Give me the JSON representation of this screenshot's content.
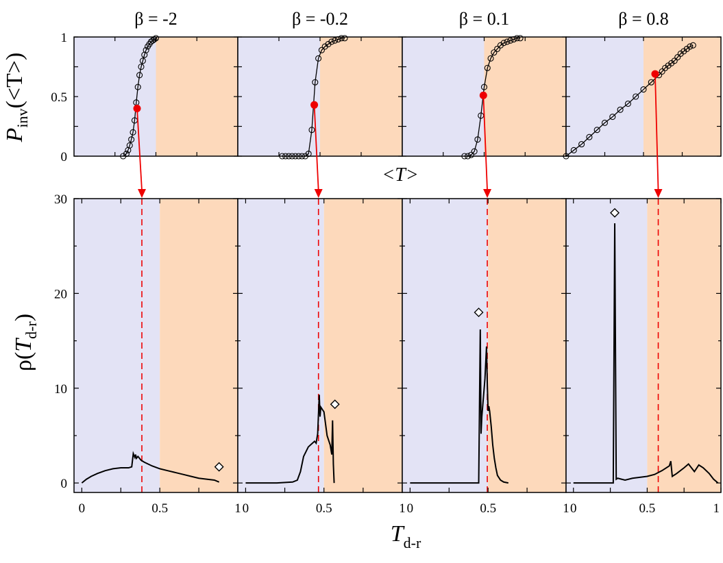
{
  "figure": {
    "top_ylabel": {
      "main": "P",
      "sub": "inv",
      "arg": "(<T>)"
    },
    "top_xlabel": "<T>",
    "bottom_ylabel": {
      "main": "ρ(",
      "italic": "T",
      "sub": "d-r",
      "close": ")"
    },
    "bottom_xlabel": {
      "main": "T",
      "sub": "d-r"
    },
    "colors": {
      "left_region": "#e3e3f5",
      "right_region": "#fdd9bb",
      "curve": "#000000",
      "marker_highlight": "#ee0000",
      "arrow": "#ee0000"
    }
  },
  "chart_data": [
    {
      "type": "line",
      "panel": "top",
      "title": "β = -2",
      "xlim": [
        0.0,
        1.0
      ],
      "ylim": [
        0.0,
        1.0
      ],
      "yticks": [
        0,
        0.5,
        1
      ],
      "ytick_labels": [
        "0",
        "0.5",
        "1"
      ],
      "region_split": 0.5,
      "series": [
        {
          "marker": "circle-open",
          "x": [
            0.3,
            0.32,
            0.33,
            0.34,
            0.35,
            0.36,
            0.37,
            0.38,
            0.39,
            0.4,
            0.41,
            0.42,
            0.43,
            0.44,
            0.45,
            0.46,
            0.47,
            0.48,
            0.49,
            0.5
          ],
          "y": [
            0.0,
            0.02,
            0.05,
            0.09,
            0.14,
            0.2,
            0.3,
            0.45,
            0.58,
            0.68,
            0.75,
            0.8,
            0.85,
            0.89,
            0.92,
            0.94,
            0.96,
            0.97,
            0.98,
            0.99
          ]
        }
      ],
      "highlight": {
        "x": 0.385,
        "y": 0.4
      }
    },
    {
      "type": "line",
      "panel": "top",
      "title": "β = -0.2",
      "xlim": [
        0.0,
        1.0
      ],
      "ylim": [
        0.0,
        1.0
      ],
      "region_split": 0.5,
      "series": [
        {
          "marker": "circle-open",
          "x": [
            0.27,
            0.29,
            0.31,
            0.33,
            0.35,
            0.37,
            0.39,
            0.41,
            0.43,
            0.45,
            0.47,
            0.49,
            0.51,
            0.53,
            0.55,
            0.57,
            0.59,
            0.61,
            0.63,
            0.65
          ],
          "y": [
            0.0,
            0.0,
            0.0,
            0.0,
            0.0,
            0.0,
            0.0,
            0.0,
            0.02,
            0.22,
            0.62,
            0.82,
            0.89,
            0.92,
            0.94,
            0.96,
            0.97,
            0.98,
            0.99,
            0.99
          ]
        }
      ],
      "highlight": {
        "x": 0.465,
        "y": 0.43
      }
    },
    {
      "type": "line",
      "panel": "top",
      "title": "β = 0.1",
      "xlim": [
        0.0,
        1.0
      ],
      "ylim": [
        0.0,
        1.0
      ],
      "region_split": 0.5,
      "series": [
        {
          "marker": "circle-open",
          "x": [
            0.38,
            0.4,
            0.42,
            0.44,
            0.46,
            0.48,
            0.5,
            0.52,
            0.54,
            0.56,
            0.58,
            0.6,
            0.62,
            0.64,
            0.66,
            0.68,
            0.7,
            0.72
          ],
          "y": [
            0.0,
            0.0,
            0.01,
            0.04,
            0.14,
            0.34,
            0.58,
            0.74,
            0.82,
            0.87,
            0.9,
            0.93,
            0.95,
            0.96,
            0.97,
            0.98,
            0.99,
            0.99
          ]
        }
      ],
      "highlight": {
        "x": 0.495,
        "y": 0.51
      }
    },
    {
      "type": "line",
      "panel": "top",
      "title": "β = 0.8",
      "xlim": [
        0.0,
        1.0
      ],
      "ylim": [
        0.0,
        1.0
      ],
      "region_split": 0.5,
      "series": [
        {
          "marker": "circle-open",
          "x": [
            0.0,
            0.05,
            0.1,
            0.15,
            0.2,
            0.25,
            0.3,
            0.35,
            0.4,
            0.45,
            0.5,
            0.55,
            0.6,
            0.62,
            0.64,
            0.66,
            0.68,
            0.7,
            0.72,
            0.74,
            0.76,
            0.78,
            0.8,
            0.82
          ],
          "y": [
            0.0,
            0.05,
            0.1,
            0.16,
            0.22,
            0.28,
            0.33,
            0.39,
            0.44,
            0.5,
            0.56,
            0.62,
            0.68,
            0.71,
            0.74,
            0.76,
            0.78,
            0.8,
            0.83,
            0.86,
            0.88,
            0.9,
            0.92,
            0.93
          ]
        }
      ],
      "highlight": {
        "x": 0.575,
        "y": 0.69
      }
    },
    {
      "type": "line",
      "panel": "bottom",
      "xlim": [
        -0.05,
        1.0
      ],
      "ylim": [
        -1.0,
        30.0
      ],
      "xticks": [
        0,
        0.5,
        1
      ],
      "xtick_labels": [
        "0",
        "0.5",
        "1"
      ],
      "yticks": [
        0,
        10,
        20,
        30
      ],
      "ytick_labels": [
        "0",
        "10",
        "20",
        "30"
      ],
      "region_split": 0.5,
      "dashed_x": 0.385,
      "series": [
        {
          "x": [
            0.0,
            0.03,
            0.06,
            0.1,
            0.15,
            0.2,
            0.25,
            0.3,
            0.32,
            0.33,
            0.34,
            0.345,
            0.35,
            0.36,
            0.38,
            0.4,
            0.45,
            0.5,
            0.55,
            0.6,
            0.65,
            0.7,
            0.75,
            0.8,
            0.85,
            0.88
          ],
          "y": [
            0.0,
            0.4,
            0.7,
            1.0,
            1.3,
            1.5,
            1.6,
            1.6,
            1.7,
            3.1,
            2.7,
            3.0,
            2.6,
            2.8,
            2.4,
            2.2,
            1.8,
            1.5,
            1.3,
            1.1,
            0.9,
            0.7,
            0.5,
            0.4,
            0.3,
            0.1
          ]
        }
      ],
      "peak_marker": {
        "x": 0.88,
        "y": 1.7
      }
    },
    {
      "type": "line",
      "panel": "bottom",
      "xlim": [
        -0.05,
        1.0
      ],
      "ylim": [
        -1.0,
        30.0
      ],
      "xtick_labels": [
        "0",
        "0.5",
        "1"
      ],
      "region_split": 0.5,
      "dashed_x": 0.465,
      "series": [
        {
          "x": [
            0.0,
            0.1,
            0.2,
            0.3,
            0.33,
            0.35,
            0.37,
            0.4,
            0.42,
            0.44,
            0.45,
            0.46,
            0.47,
            0.475,
            0.48,
            0.5,
            0.52,
            0.54,
            0.55,
            0.555,
            0.56,
            0.565
          ],
          "y": [
            0.0,
            0.0,
            0.0,
            0.1,
            0.3,
            1.2,
            2.8,
            3.8,
            4.1,
            4.4,
            4.2,
            5.2,
            9.3,
            7.0,
            8.0,
            7.5,
            5.0,
            4.0,
            3.0,
            6.6,
            2.0,
            0.0
          ]
        }
      ],
      "peak_marker": {
        "x": 0.57,
        "y": 8.3
      }
    },
    {
      "type": "line",
      "panel": "bottom",
      "xlim": [
        -0.05,
        1.0
      ],
      "ylim": [
        -1.0,
        30.0
      ],
      "xtick_labels": [
        "0",
        "0.5",
        "1"
      ],
      "region_split": 0.5,
      "dashed_x": 0.495,
      "series": [
        {
          "x": [
            0.0,
            0.1,
            0.2,
            0.3,
            0.4,
            0.44,
            0.45,
            0.455,
            0.46,
            0.48,
            0.49,
            0.495,
            0.5,
            0.505,
            0.51,
            0.52,
            0.53,
            0.54,
            0.55,
            0.56,
            0.58,
            0.6,
            0.63
          ],
          "y": [
            0.0,
            0.0,
            0.0,
            0.0,
            0.0,
            0.0,
            16.2,
            5.2,
            7.0,
            11.0,
            14.4,
            10.5,
            7.6,
            8.1,
            7.6,
            6.0,
            4.0,
            2.6,
            1.6,
            0.8,
            0.3,
            0.1,
            0.0
          ]
        }
      ],
      "peak_marker": {
        "x": 0.44,
        "y": 18.0
      }
    },
    {
      "type": "line",
      "panel": "bottom",
      "xlim": [
        -0.05,
        1.0
      ],
      "ylim": [
        -1.0,
        30.0
      ],
      "xtick_labels": [
        "0",
        "0.5",
        "1"
      ],
      "region_split": 0.5,
      "dashed_x": 0.575,
      "series": [
        {
          "x": [
            0.0,
            0.1,
            0.2,
            0.27,
            0.28,
            0.29,
            0.3,
            0.35,
            0.4,
            0.45,
            0.5,
            0.55,
            0.6,
            0.65,
            0.66,
            0.67,
            0.7,
            0.75,
            0.78,
            0.8,
            0.82,
            0.85,
            0.88,
            0.92,
            0.95,
            0.98
          ],
          "y": [
            0.0,
            0.0,
            0.0,
            0.0,
            27.4,
            0.4,
            0.5,
            0.3,
            0.5,
            0.6,
            0.7,
            0.9,
            1.3,
            1.8,
            2.3,
            0.7,
            1.0,
            1.6,
            2.0,
            1.6,
            1.2,
            1.9,
            1.6,
            1.0,
            0.4,
            0.0
          ]
        }
      ],
      "peak_marker": {
        "x": 0.28,
        "y": 28.5
      }
    }
  ]
}
